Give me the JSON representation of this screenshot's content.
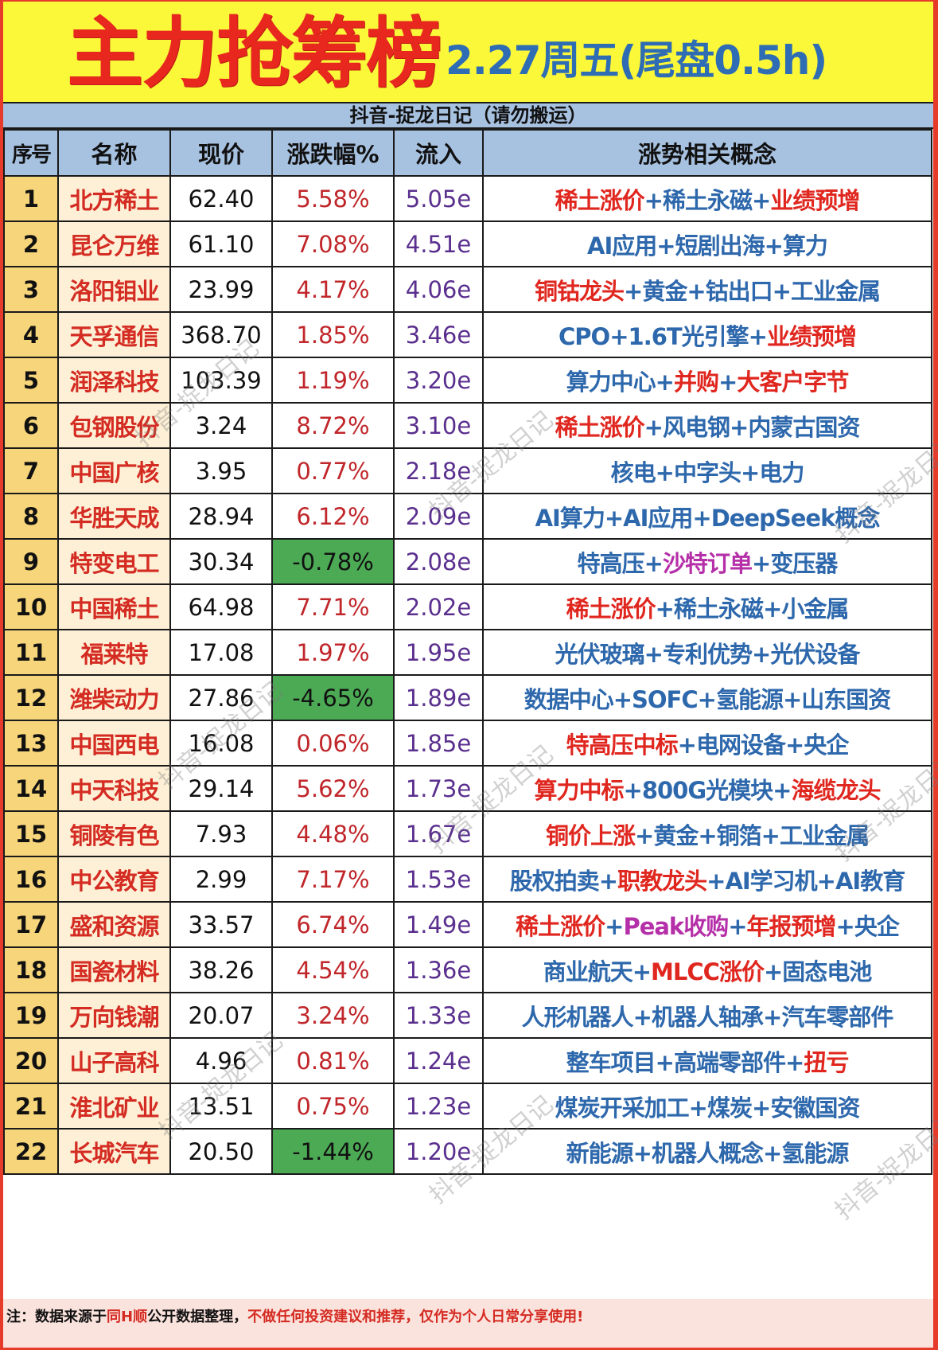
{
  "title": {
    "main": "主力抢筹榜",
    "date": "2.27周五(尾盘0.5h)"
  },
  "subtitle": "抖音-捉龙日记（请勿搬运）",
  "colors": {
    "title_red": "#e8281f",
    "title_blue": "#2e6db4",
    "title_bg": "#fbf739",
    "header_bg": "#a7c1e0",
    "index_bg": "#f7d57a",
    "name_bg": "#fdf0d6",
    "negative_bg": "#4caa55",
    "concept_blue": "#2e68ac",
    "concept_red": "#e0271f",
    "concept_purple": "#b52fa8",
    "footer_bg": "#fbe3dd"
  },
  "headers": [
    "序号",
    "名称",
    "现价",
    "涨跌幅%",
    "流入",
    "涨势相关概念"
  ],
  "rows": [
    {
      "idx": "1",
      "name": "北方稀土",
      "price": "62.40",
      "change": "5.58%",
      "negative": false,
      "flow": "5.05e",
      "concepts": [
        {
          "t": "稀土涨价",
          "c": "red"
        },
        {
          "t": "稀土永磁",
          "c": "blue"
        },
        {
          "t": "业绩预增",
          "c": "red"
        }
      ]
    },
    {
      "idx": "2",
      "name": "昆仑万维",
      "price": "61.10",
      "change": "7.08%",
      "negative": false,
      "flow": "4.51e",
      "concepts": [
        {
          "t": "AI应用",
          "c": "blue"
        },
        {
          "t": "短剧出海",
          "c": "blue"
        },
        {
          "t": "算力",
          "c": "blue"
        }
      ]
    },
    {
      "idx": "3",
      "name": "洛阳钼业",
      "price": "23.99",
      "change": "4.17%",
      "negative": false,
      "flow": "4.06e",
      "concepts": [
        {
          "t": "铜钴龙头",
          "c": "red"
        },
        {
          "t": "黄金",
          "c": "blue"
        },
        {
          "t": "钴出口",
          "c": "blue"
        },
        {
          "t": "工业金属",
          "c": "blue"
        }
      ]
    },
    {
      "idx": "4",
      "name": "天孚通信",
      "price": "368.70",
      "change": "1.85%",
      "negative": false,
      "flow": "3.46e",
      "concepts": [
        {
          "t": "CPO",
          "c": "blue"
        },
        {
          "t": "1.6T光引擎",
          "c": "blue"
        },
        {
          "t": "业绩预增",
          "c": "red"
        }
      ]
    },
    {
      "idx": "5",
      "name": "润泽科技",
      "price": "103.39",
      "change": "1.19%",
      "negative": false,
      "flow": "3.20e",
      "concepts": [
        {
          "t": "算力中心",
          "c": "blue"
        },
        {
          "t": "并购",
          "c": "red"
        },
        {
          "t": "大客户字节",
          "c": "red"
        }
      ]
    },
    {
      "idx": "6",
      "name": "包钢股份",
      "price": "3.24",
      "change": "8.72%",
      "negative": false,
      "flow": "3.10e",
      "concepts": [
        {
          "t": "稀土涨价",
          "c": "red"
        },
        {
          "t": "风电钢",
          "c": "blue"
        },
        {
          "t": "内蒙古国资",
          "c": "blue"
        }
      ]
    },
    {
      "idx": "7",
      "name": "中国广核",
      "price": "3.95",
      "change": "0.77%",
      "negative": false,
      "flow": "2.18e",
      "concepts": [
        {
          "t": "核电",
          "c": "blue"
        },
        {
          "t": "中字头",
          "c": "blue"
        },
        {
          "t": "电力",
          "c": "blue"
        }
      ]
    },
    {
      "idx": "8",
      "name": "华胜天成",
      "price": "28.94",
      "change": "6.12%",
      "negative": false,
      "flow": "2.09e",
      "concepts": [
        {
          "t": "AI算力",
          "c": "blue"
        },
        {
          "t": "AI应用",
          "c": "blue"
        },
        {
          "t": "DeepSeek概念",
          "c": "blue"
        }
      ]
    },
    {
      "idx": "9",
      "name": "特变电工",
      "price": "30.34",
      "change": "-0.78%",
      "negative": true,
      "flow": "2.08e",
      "concepts": [
        {
          "t": "特高压",
          "c": "blue"
        },
        {
          "t": "沙特订单",
          "c": "purple"
        },
        {
          "t": "变压器",
          "c": "blue"
        }
      ]
    },
    {
      "idx": "10",
      "name": "中国稀土",
      "price": "64.98",
      "change": "7.71%",
      "negative": false,
      "flow": "2.02e",
      "concepts": [
        {
          "t": "稀土涨价",
          "c": "red"
        },
        {
          "t": "稀土永磁",
          "c": "blue"
        },
        {
          "t": "小金属",
          "c": "blue"
        }
      ]
    },
    {
      "idx": "11",
      "name": "福莱特",
      "price": "17.08",
      "change": "1.97%",
      "negative": false,
      "flow": "1.95e",
      "concepts": [
        {
          "t": "光伏玻璃",
          "c": "blue"
        },
        {
          "t": "专利优势",
          "c": "blue"
        },
        {
          "t": "光伏设备",
          "c": "blue"
        }
      ]
    },
    {
      "idx": "12",
      "name": "潍柴动力",
      "price": "27.86",
      "change": "-4.65%",
      "negative": true,
      "flow": "1.89e",
      "concepts": [
        {
          "t": "数据中心",
          "c": "blue"
        },
        {
          "t": "SOFC",
          "c": "blue"
        },
        {
          "t": "氢能源",
          "c": "blue"
        },
        {
          "t": "山东国资",
          "c": "blue"
        }
      ]
    },
    {
      "idx": "13",
      "name": "中国西电",
      "price": "16.08",
      "change": "0.06%",
      "negative": false,
      "flow": "1.85e",
      "concepts": [
        {
          "t": "特高压中标",
          "c": "red"
        },
        {
          "t": "电网设备",
          "c": "blue"
        },
        {
          "t": "央企",
          "c": "blue"
        }
      ]
    },
    {
      "idx": "14",
      "name": "中天科技",
      "price": "29.14",
      "change": "5.62%",
      "negative": false,
      "flow": "1.73e",
      "concepts": [
        {
          "t": "算力中标",
          "c": "red"
        },
        {
          "t": "800G光模块",
          "c": "blue"
        },
        {
          "t": "海缆龙头",
          "c": "red"
        }
      ]
    },
    {
      "idx": "15",
      "name": "铜陵有色",
      "price": "7.93",
      "change": "4.48%",
      "negative": false,
      "flow": "1.67e",
      "concepts": [
        {
          "t": "铜价上涨",
          "c": "red"
        },
        {
          "t": "黄金",
          "c": "blue"
        },
        {
          "t": "铜箔",
          "c": "blue"
        },
        {
          "t": "工业金属",
          "c": "blue"
        }
      ]
    },
    {
      "idx": "16",
      "name": "中公教育",
      "price": "2.99",
      "change": "7.17%",
      "negative": false,
      "flow": "1.53e",
      "concepts": [
        {
          "t": "股权拍卖",
          "c": "blue"
        },
        {
          "t": "职教龙头",
          "c": "red"
        },
        {
          "t": "AI学习机",
          "c": "blue"
        },
        {
          "t": "AI教育",
          "c": "blue"
        }
      ]
    },
    {
      "idx": "17",
      "name": "盛和资源",
      "price": "33.57",
      "change": "6.74%",
      "negative": false,
      "flow": "1.49e",
      "concepts": [
        {
          "t": "稀土涨价",
          "c": "red"
        },
        {
          "t": "Peak收购",
          "c": "purple"
        },
        {
          "t": "年报预增",
          "c": "red"
        },
        {
          "t": "央企",
          "c": "blue"
        }
      ]
    },
    {
      "idx": "18",
      "name": "国瓷材料",
      "price": "38.26",
      "change": "4.54%",
      "negative": false,
      "flow": "1.36e",
      "concepts": [
        {
          "t": "商业航天",
          "c": "blue"
        },
        {
          "t": "MLCC涨价",
          "c": "red"
        },
        {
          "t": "固态电池",
          "c": "blue"
        }
      ]
    },
    {
      "idx": "19",
      "name": "万向钱潮",
      "price": "20.07",
      "change": "3.24%",
      "negative": false,
      "flow": "1.33e",
      "concepts": [
        {
          "t": "人形机器人",
          "c": "blue"
        },
        {
          "t": "机器人轴承",
          "c": "blue"
        },
        {
          "t": "汽车零部件",
          "c": "blue"
        }
      ]
    },
    {
      "idx": "20",
      "name": "山子高科",
      "price": "4.96",
      "change": "0.81%",
      "negative": false,
      "flow": "1.24e",
      "concepts": [
        {
          "t": "整车项目",
          "c": "blue"
        },
        {
          "t": "高端零部件",
          "c": "blue"
        },
        {
          "t": "扭亏",
          "c": "red"
        }
      ]
    },
    {
      "idx": "21",
      "name": "淮北矿业",
      "price": "13.51",
      "change": "0.75%",
      "negative": false,
      "flow": "1.23e",
      "concepts": [
        {
          "t": "煤炭开采加工",
          "c": "blue"
        },
        {
          "t": "煤炭",
          "c": "blue"
        },
        {
          "t": "安徽国资",
          "c": "blue"
        }
      ]
    },
    {
      "idx": "22",
      "name": "长城汽车",
      "price": "20.50",
      "change": "-1.44%",
      "negative": true,
      "flow": "1.20e",
      "concepts": [
        {
          "t": "新能源",
          "c": "blue"
        },
        {
          "t": "机器人概念",
          "c": "blue"
        },
        {
          "t": "氢能源",
          "c": "blue"
        }
      ]
    }
  ],
  "footer": {
    "prefix": "注：数据来源于",
    "source": "同H顺",
    "middle": "公开数据整理，",
    "disclaimer": "不做任何投资建议和推荐，",
    "suffix": "仅作为个人日常分享使用!"
  },
  "watermark": "抖音-捉龙日记"
}
